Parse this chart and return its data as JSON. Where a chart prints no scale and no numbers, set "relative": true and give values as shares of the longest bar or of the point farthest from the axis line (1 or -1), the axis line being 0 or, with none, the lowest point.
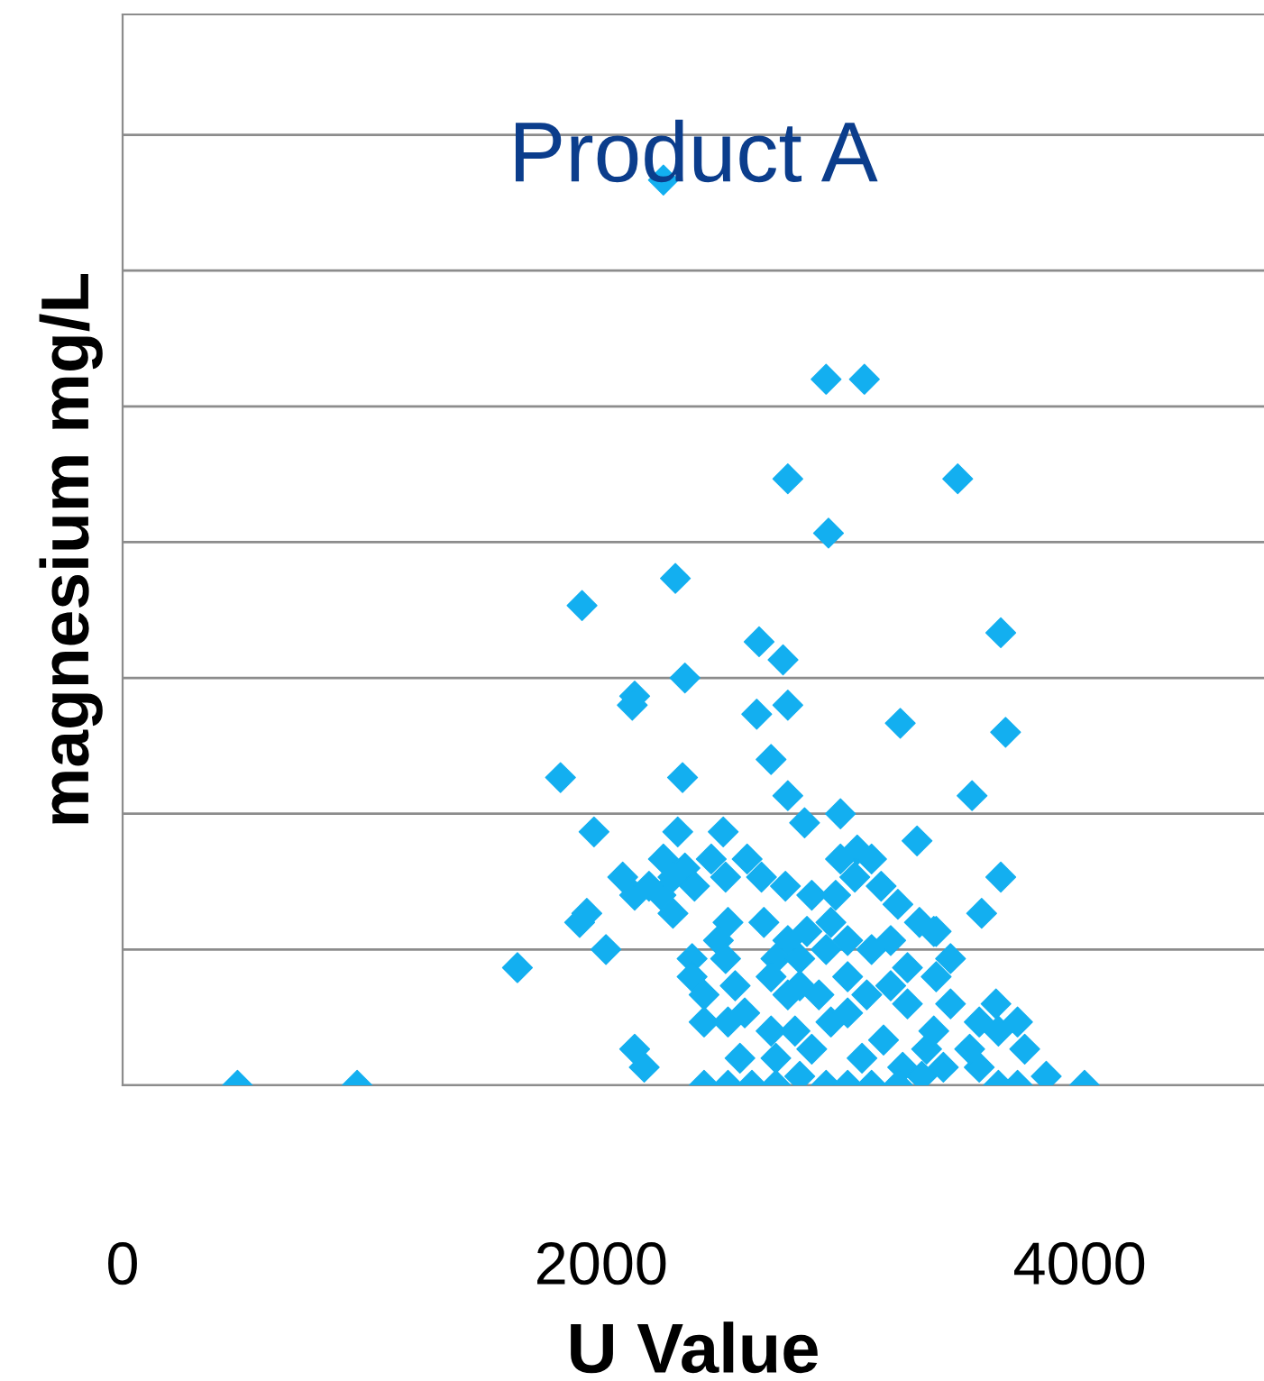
{
  "chart_data": {
    "type": "scatter",
    "title": "Product A",
    "xlabel": "U Value",
    "ylabel": "magnesium mg/L",
    "relative": true,
    "xlim": [
      0,
      4770
    ],
    "xticks": [
      0,
      2000,
      4000
    ],
    "grid": "y",
    "marker": "diamond",
    "legend": false,
    "series": [
      {
        "color": "#13aff0",
        "x": [
          480,
          980,
          2260,
          2940,
          3100,
          2780,
          3490,
          2950,
          2310,
          1920,
          3670,
          2660,
          2760,
          2140,
          2130,
          2350,
          2650,
          2780,
          3250,
          3690,
          1830,
          2340,
          2710,
          2780,
          3000,
          3550,
          1970,
          2320,
          2510,
          2850,
          3320,
          3670,
          3070,
          3000,
          2610,
          2460,
          2090,
          2260,
          2350,
          1940,
          1910,
          2020,
          2250,
          1650,
          2140,
          3170,
          3330,
          3400,
          3590,
          3400,
          3650,
          4020,
          3770,
          3360,
          3580,
          2140,
          2200,
          2300,
          2390,
          2520,
          2670,
          2770,
          2880,
          2980,
          3060,
          3130,
          3240,
          2300,
          2530,
          2490,
          2680,
          2780,
          2860,
          2960,
          3030,
          3210,
          3390,
          3460,
          2380,
          2520,
          2730,
          2830,
          2940,
          3130,
          3280,
          2380,
          2560,
          2710,
          2830,
          3030,
          3210,
          2430,
          2600,
          2780,
          2910,
          3110,
          3280,
          3460,
          2430,
          2530,
          2710,
          2810,
          2960,
          3030,
          3180,
          3390,
          3580,
          3660,
          3740,
          2580,
          2730,
          2880,
          3090,
          3260,
          3430,
          3540,
          2180,
          2430,
          2530,
          2630,
          2730,
          2830,
          2940,
          3030,
          3130,
          3240,
          3340,
          3660,
          3740,
          3860
        ],
        "values": [
          0,
          0,
          1,
          0.78,
          0.78,
          0.67,
          0.67,
          0.61,
          0.56,
          0.53,
          0.5,
          0.49,
          0.47,
          0.43,
          0.42,
          0.45,
          0.41,
          0.42,
          0.4,
          0.39,
          0.34,
          0.34,
          0.36,
          0.32,
          0.3,
          0.32,
          0.28,
          0.28,
          0.28,
          0.29,
          0.27,
          0.23,
          0.26,
          0.25,
          0.25,
          0.25,
          0.23,
          0.25,
          0.24,
          0.19,
          0.18,
          0.15,
          0.21,
          0.13,
          0.04,
          0.22,
          0.18,
          0.17,
          0.19,
          0.12,
          0.09,
          0,
          0.04,
          0.04,
          0.02,
          0.21,
          0.22,
          0.23,
          0.22,
          0.23,
          0.23,
          0.22,
          0.21,
          0.21,
          0.23,
          0.25,
          0.2,
          0.19,
          0.18,
          0.16,
          0.18,
          0.16,
          0.17,
          0.18,
          0.16,
          0.16,
          0.17,
          0.14,
          0.14,
          0.14,
          0.14,
          0.14,
          0.15,
          0.15,
          0.13,
          0.12,
          0.11,
          0.12,
          0.11,
          0.12,
          0.11,
          0.1,
          0.08,
          0.1,
          0.1,
          0.1,
          0.09,
          0.09,
          0.07,
          0.07,
          0.06,
          0.06,
          0.07,
          0.08,
          0.05,
          0.06,
          0.07,
          0.06,
          0.07,
          0.03,
          0.03,
          0.04,
          0.03,
          0.02,
          0.02,
          0.04,
          0.02,
          0,
          0,
          0,
          0,
          0.01,
          0,
          0,
          0,
          0,
          0.01,
          0,
          0,
          0.01
        ]
      }
    ]
  }
}
